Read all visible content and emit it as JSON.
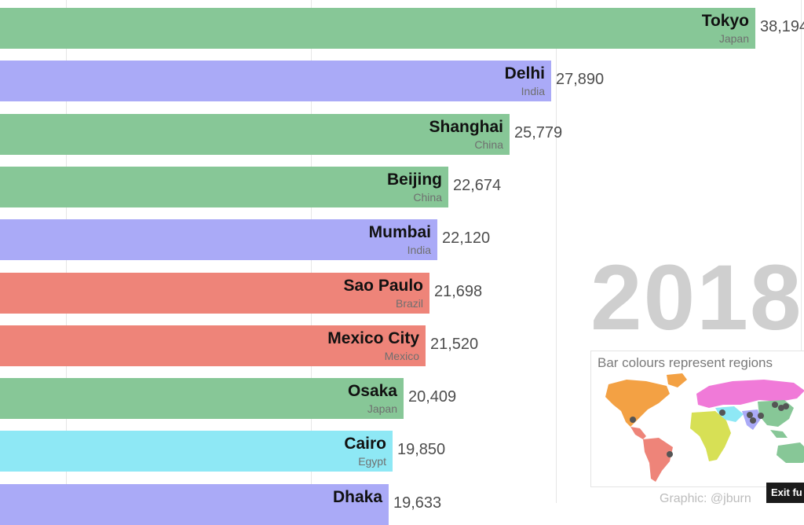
{
  "chart_data": {
    "type": "bar",
    "orientation": "horizontal",
    "year": "2018",
    "categories": [
      "Tokyo",
      "Delhi",
      "Shanghai",
      "Beijing",
      "Mumbai",
      "Sao Paulo",
      "Mexico City",
      "Osaka",
      "Cairo",
      "Dhaka"
    ],
    "countries": [
      "Japan",
      "India",
      "China",
      "China",
      "India",
      "Brazil",
      "Mexico",
      "Japan",
      "Egypt",
      ""
    ],
    "values": [
      38194,
      27890,
      25779,
      22674,
      22120,
      21698,
      21520,
      20409,
      19850,
      19633
    ],
    "value_labels": [
      "38,194",
      "27,890",
      "25,779",
      "22,674",
      "22,120",
      "21,698",
      "21,520",
      "20,409",
      "19,850",
      "19,633"
    ],
    "regions": [
      "east-asia",
      "south-asia",
      "east-asia",
      "east-asia",
      "south-asia",
      "latin-america",
      "latin-america",
      "east-asia",
      "middle-east",
      "south-asia"
    ],
    "region_colors": {
      "east-asia": "#87c797",
      "south-asia": "#aaaaf7",
      "latin-america": "#ee8479",
      "middle-east": "#8ee8f5"
    },
    "legend_title": "Bar colours represent regions",
    "legend_position": "bottom-right"
  },
  "credit": "Graphic: @jburn",
  "exit_button_label": "Exit fu"
}
